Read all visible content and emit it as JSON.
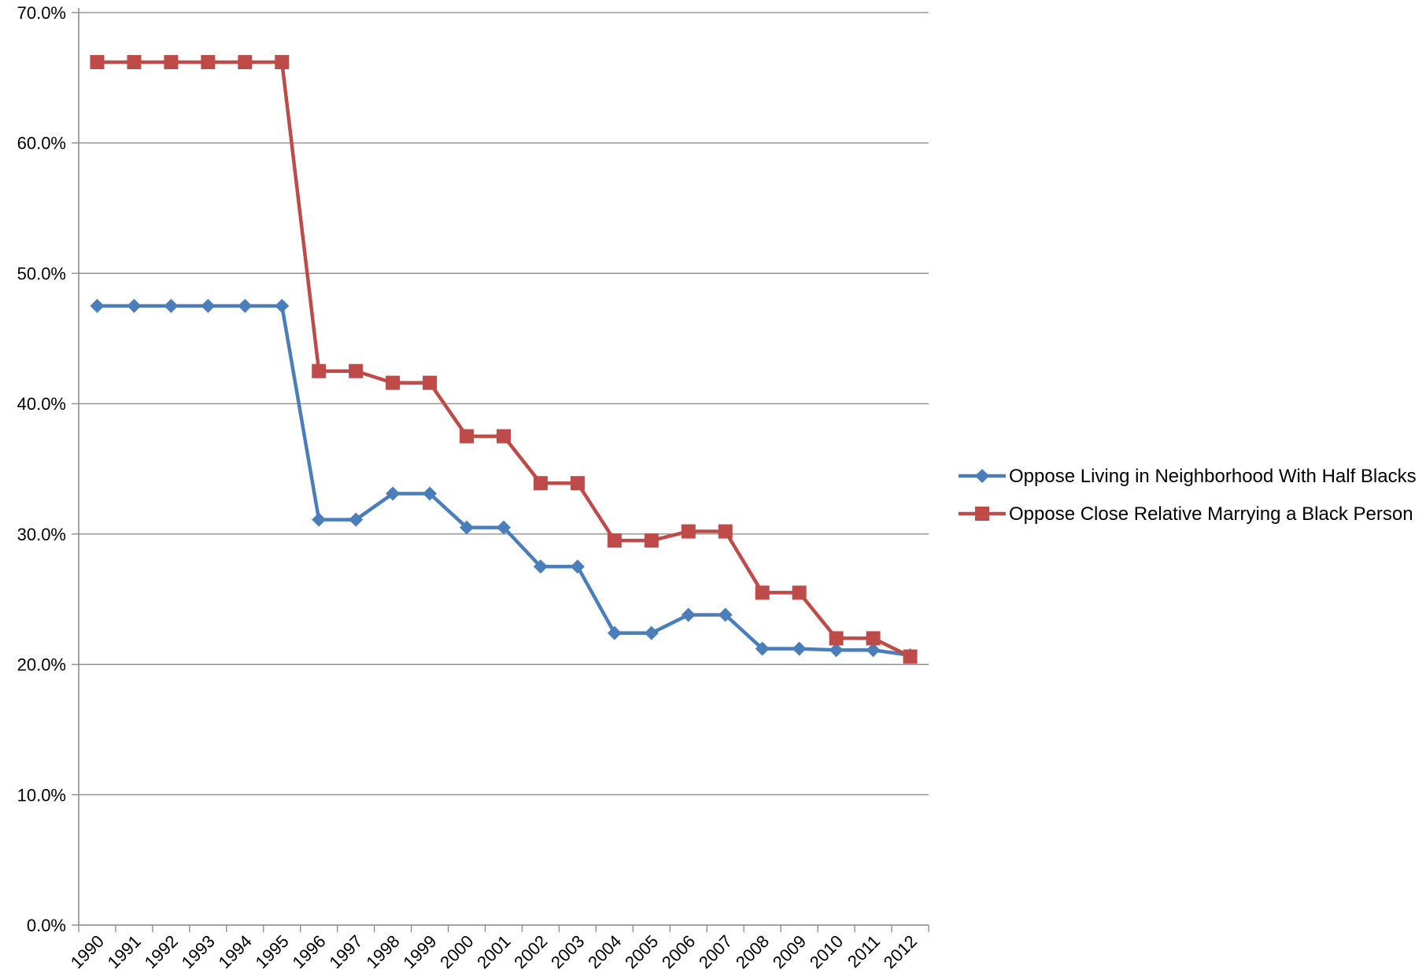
{
  "chart_data": {
    "type": "line",
    "title": "",
    "xlabel": "",
    "ylabel": "",
    "categories": [
      "1990",
      "1991",
      "1992",
      "1993",
      "1994",
      "1995",
      "1996",
      "1997",
      "1998",
      "1999",
      "2000",
      "2001",
      "2002",
      "2003",
      "2004",
      "2005",
      "2006",
      "2007",
      "2008",
      "2009",
      "2010",
      "2011",
      "2012"
    ],
    "ylim": [
      0,
      70
    ],
    "y_ticks": [
      "0.0%",
      "10.0%",
      "20.0%",
      "30.0%",
      "40.0%",
      "50.0%",
      "60.0%",
      "70.0%"
    ],
    "y_tick_values": [
      0,
      10,
      20,
      30,
      40,
      50,
      60,
      70
    ],
    "grid": "horizontal",
    "legend_position": "right",
    "series": [
      {
        "name": "Oppose Living in Neighborhood With Half Blacks",
        "color": "#4a7ebb",
        "marker": "diamond",
        "values": [
          47.5,
          47.5,
          47.5,
          47.5,
          47.5,
          47.5,
          31.1,
          31.1,
          33.1,
          33.1,
          30.5,
          30.5,
          27.5,
          27.5,
          22.4,
          22.4,
          23.8,
          23.8,
          21.2,
          21.2,
          21.1,
          21.1,
          20.7
        ]
      },
      {
        "name": "Oppose Close Relative Marrying a Black Person",
        "color": "#be4b48",
        "marker": "square",
        "values": [
          66.2,
          66.2,
          66.2,
          66.2,
          66.2,
          66.2,
          42.5,
          42.5,
          41.6,
          41.6,
          37.5,
          37.5,
          33.9,
          33.9,
          29.5,
          29.5,
          30.2,
          30.2,
          25.5,
          25.5,
          22.0,
          22.0,
          20.6
        ]
      }
    ]
  }
}
